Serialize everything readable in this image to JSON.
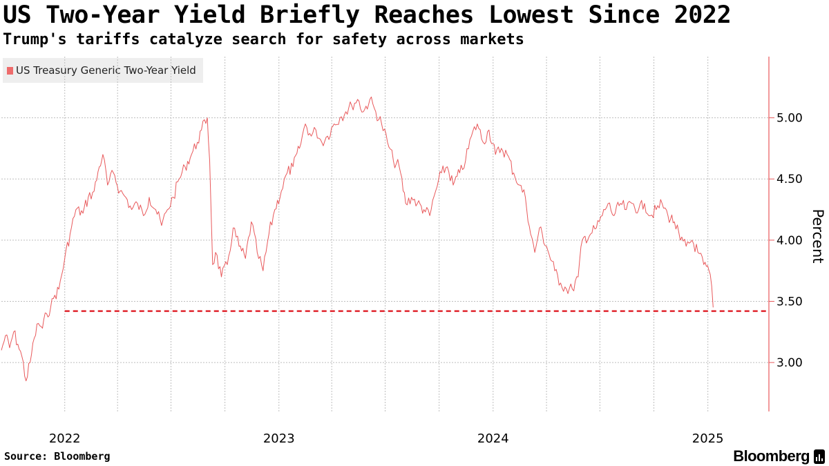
{
  "header": {
    "title": "US Two-Year Yield Briefly Reaches Lowest Since 2022",
    "subtitle": "Trump's tariffs catalyze search for safety across markets"
  },
  "legend": {
    "label": "US Treasury Generic Two-Year Yield",
    "color": "#ee6b6b"
  },
  "footer": {
    "source": "Source: Bloomberg",
    "brand": "Bloomberg"
  },
  "colors": {
    "series": "#e8585a",
    "reference_line": "#e0242c",
    "axis": "#e8585a",
    "grid": "#bdbdbd"
  },
  "chart_data": {
    "type": "line",
    "title": "US Two-Year Yield Briefly Reaches Lowest Since 2022",
    "subtitle": "Trump's tariffs catalyze search for safety across markets",
    "ylabel": "Percent",
    "xlabel": "",
    "ylim": [
      2.6,
      5.5
    ],
    "xlim": [
      "2021-09-15",
      "2025-04-15"
    ],
    "yticks": [
      3.0,
      3.5,
      4.0,
      4.5,
      5.0
    ],
    "ytick_labels": [
      "3.00",
      "3.50",
      "4.00",
      "4.50",
      "5.00"
    ],
    "xtick_labels": [
      {
        "date": "2022-01-01",
        "label": "2022"
      },
      {
        "date": "2023-01-01",
        "label": "2023"
      },
      {
        "date": "2024-01-01",
        "label": "2024"
      },
      {
        "date": "2025-01-01",
        "label": "2025"
      }
    ],
    "gridlines_x": [
      "2022-01-01",
      "2022-04-01",
      "2022-07-01",
      "2022-10-01",
      "2023-01-01",
      "2023-04-01",
      "2023-07-01",
      "2023-10-01",
      "2024-01-01",
      "2024-04-01",
      "2024-07-01",
      "2024-10-01",
      "2025-01-01"
    ],
    "grid": true,
    "legend_position": "top-left",
    "reference_line": {
      "value": 3.42,
      "from": "2022-01-01",
      "to": "2025-04-15",
      "style": "dashed"
    },
    "series": [
      {
        "name": "US Treasury Generic Two-Year Yield",
        "points": [
          [
            "2021-09-15",
            3.1
          ],
          [
            "2021-09-22",
            3.22
          ],
          [
            "2021-09-29",
            3.12
          ],
          [
            "2021-10-06",
            3.25
          ],
          [
            "2021-10-13",
            3.15
          ],
          [
            "2021-10-20",
            3.05
          ],
          [
            "2021-10-27",
            2.85
          ],
          [
            "2021-11-03",
            3.0
          ],
          [
            "2021-11-10",
            3.2
          ],
          [
            "2021-11-17",
            3.32
          ],
          [
            "2021-11-24",
            3.28
          ],
          [
            "2021-12-01",
            3.4
          ],
          [
            "2021-12-08",
            3.45
          ],
          [
            "2021-12-15",
            3.55
          ],
          [
            "2021-12-22",
            3.6
          ],
          [
            "2022-01-01",
            3.85
          ],
          [
            "2022-01-10",
            4.05
          ],
          [
            "2022-01-20",
            4.25
          ],
          [
            "2022-02-01",
            4.22
          ],
          [
            "2022-02-10",
            4.35
          ],
          [
            "2022-02-20",
            4.4
          ],
          [
            "2022-03-01",
            4.6
          ],
          [
            "2022-03-07",
            4.7
          ],
          [
            "2022-03-15",
            4.45
          ],
          [
            "2022-03-25",
            4.55
          ],
          [
            "2022-04-05",
            4.4
          ],
          [
            "2022-04-15",
            4.35
          ],
          [
            "2022-04-25",
            4.25
          ],
          [
            "2022-05-05",
            4.3
          ],
          [
            "2022-05-15",
            4.2
          ],
          [
            "2022-05-25",
            4.35
          ],
          [
            "2022-06-05",
            4.25
          ],
          [
            "2022-06-15",
            4.12
          ],
          [
            "2022-06-25",
            4.25
          ],
          [
            "2022-07-05",
            4.35
          ],
          [
            "2022-07-15",
            4.5
          ],
          [
            "2022-07-25",
            4.6
          ],
          [
            "2022-08-05",
            4.7
          ],
          [
            "2022-08-15",
            4.8
          ],
          [
            "2022-08-22",
            4.9
          ],
          [
            "2022-09-01",
            5.0
          ],
          [
            "2022-09-05",
            4.65
          ],
          [
            "2022-09-10",
            3.8
          ],
          [
            "2022-09-15",
            3.9
          ],
          [
            "2022-09-25",
            3.7
          ],
          [
            "2022-10-05",
            3.8
          ],
          [
            "2022-10-15",
            4.1
          ],
          [
            "2022-10-25",
            3.95
          ],
          [
            "2022-11-05",
            3.85
          ],
          [
            "2022-11-15",
            4.15
          ],
          [
            "2022-11-25",
            3.9
          ],
          [
            "2022-12-05",
            3.75
          ],
          [
            "2022-12-15",
            4.05
          ],
          [
            "2022-12-25",
            4.25
          ],
          [
            "2023-01-05",
            4.4
          ],
          [
            "2023-01-15",
            4.55
          ],
          [
            "2023-01-25",
            4.6
          ],
          [
            "2023-02-05",
            4.75
          ],
          [
            "2023-02-15",
            4.95
          ],
          [
            "2023-02-25",
            4.85
          ],
          [
            "2023-03-05",
            4.9
          ],
          [
            "2023-03-15",
            4.8
          ],
          [
            "2023-03-25",
            4.85
          ],
          [
            "2023-04-05",
            4.95
          ],
          [
            "2023-04-15",
            5.0
          ],
          [
            "2023-04-25",
            5.05
          ],
          [
            "2023-05-05",
            5.1
          ],
          [
            "2023-05-15",
            5.15
          ],
          [
            "2023-05-25",
            5.05
          ],
          [
            "2023-06-05",
            5.15
          ],
          [
            "2023-06-15",
            5.05
          ],
          [
            "2023-06-25",
            4.95
          ],
          [
            "2023-07-05",
            4.8
          ],
          [
            "2023-07-15",
            4.65
          ],
          [
            "2023-07-25",
            4.6
          ],
          [
            "2023-08-05",
            4.3
          ],
          [
            "2023-08-15",
            4.35
          ],
          [
            "2023-08-25",
            4.3
          ],
          [
            "2023-09-05",
            4.25
          ],
          [
            "2023-09-15",
            4.2
          ],
          [
            "2023-09-25",
            4.4
          ],
          [
            "2023-10-05",
            4.55
          ],
          [
            "2023-10-15",
            4.6
          ],
          [
            "2023-10-25",
            4.45
          ],
          [
            "2023-11-05",
            4.55
          ],
          [
            "2023-11-15",
            4.65
          ],
          [
            "2023-11-25",
            4.85
          ],
          [
            "2023-12-05",
            4.95
          ],
          [
            "2023-12-15",
            4.8
          ],
          [
            "2023-12-25",
            4.9
          ],
          [
            "2024-01-05",
            4.7
          ],
          [
            "2024-01-15",
            4.75
          ],
          [
            "2024-01-25",
            4.7
          ],
          [
            "2024-02-05",
            4.55
          ],
          [
            "2024-02-15",
            4.45
          ],
          [
            "2024-02-25",
            4.35
          ],
          [
            "2024-03-05",
            4.05
          ],
          [
            "2024-03-12",
            3.9
          ],
          [
            "2024-03-20",
            4.1
          ],
          [
            "2024-04-01",
            3.95
          ],
          [
            "2024-04-15",
            3.75
          ],
          [
            "2024-04-25",
            3.65
          ],
          [
            "2024-05-05",
            3.6
          ],
          [
            "2024-05-15",
            3.6
          ],
          [
            "2024-05-25",
            3.7
          ],
          [
            "2024-06-01",
            4.0
          ],
          [
            "2024-06-15",
            4.05
          ],
          [
            "2024-06-25",
            4.1
          ],
          [
            "2024-07-05",
            4.2
          ],
          [
            "2024-07-15",
            4.3
          ],
          [
            "2024-07-25",
            4.2
          ],
          [
            "2024-08-05",
            4.3
          ],
          [
            "2024-08-15",
            4.25
          ],
          [
            "2024-08-25",
            4.3
          ],
          [
            "2024-09-05",
            4.25
          ],
          [
            "2024-09-15",
            4.3
          ],
          [
            "2024-09-25",
            4.2
          ],
          [
            "2024-10-05",
            4.25
          ],
          [
            "2024-10-15",
            4.3
          ],
          [
            "2024-10-25",
            4.2
          ],
          [
            "2024-11-05",
            4.15
          ],
          [
            "2024-11-15",
            4.0
          ],
          [
            "2024-11-25",
            3.95
          ],
          [
            "2024-12-05",
            4.0
          ],
          [
            "2024-12-15",
            3.9
          ],
          [
            "2024-12-25",
            3.8
          ],
          [
            "2025-01-05",
            3.72
          ],
          [
            "2025-01-10",
            3.45
          ]
        ]
      }
    ]
  }
}
